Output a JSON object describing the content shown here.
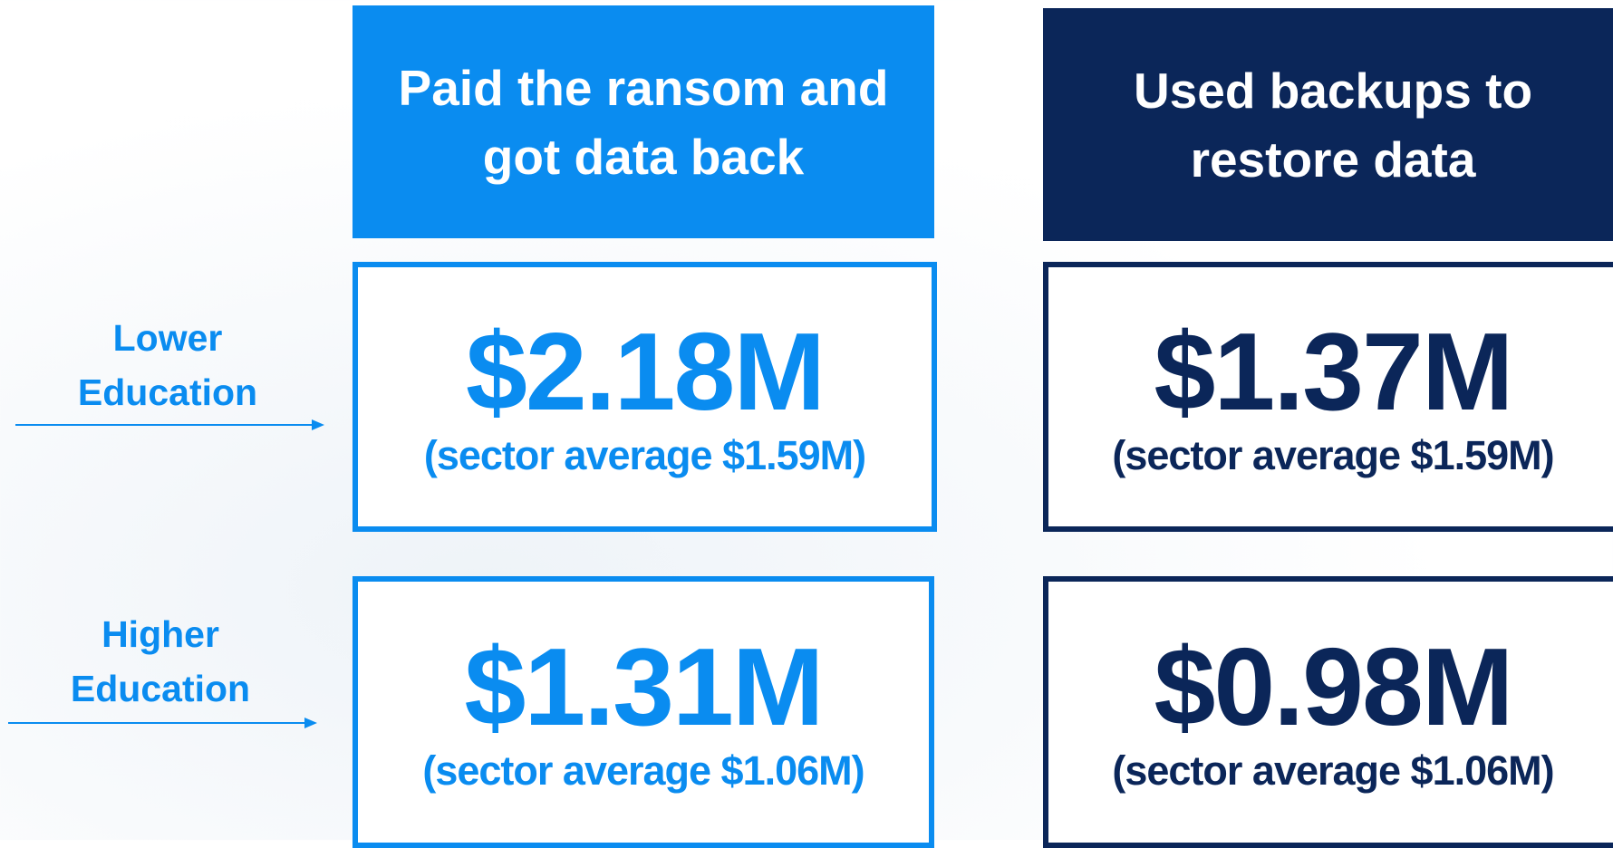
{
  "columns": [
    "Paid the ransom and got data back",
    "Used backups to restore data"
  ],
  "rows": [
    {
      "label": "Lower Education",
      "cells": [
        {
          "value": "$2.18M",
          "note": "(sector average $1.59M)"
        },
        {
          "value": "$1.37M",
          "note": "(sector average $1.59M)"
        }
      ]
    },
    {
      "label": "Higher Education",
      "cells": [
        {
          "value": "$1.31M",
          "note": "(sector average $1.06M)"
        },
        {
          "value": "$0.98M",
          "note": "(sector average $1.06M)"
        }
      ]
    }
  ]
}
